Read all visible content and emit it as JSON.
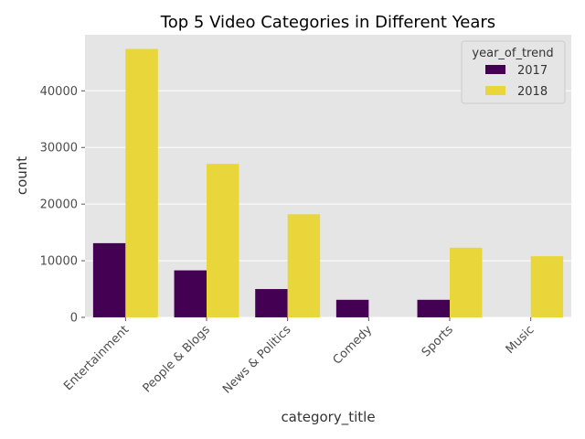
{
  "chart_data": {
    "type": "bar",
    "title": "Top 5 Video Categories in Different Years",
    "xlabel": "category_title",
    "ylabel": "count",
    "categories": [
      "Entertainment",
      "People & Blogs",
      "News & Politics",
      "Comedy",
      "Sports",
      "Music"
    ],
    "series": [
      {
        "name": "2017",
        "color": "#440154",
        "values": [
          13100,
          8300,
          5000,
          3100,
          3100,
          0
        ]
      },
      {
        "name": "2018",
        "color": "#e8d63b",
        "values": [
          47400,
          27100,
          18200,
          0,
          12300,
          10800
        ]
      }
    ],
    "ylim": [
      0,
      49900
    ],
    "yticks": [
      0,
      10000,
      20000,
      30000,
      40000
    ],
    "ytick_labels": [
      "0",
      "10000",
      "20000",
      "30000",
      "40000"
    ],
    "grid": true,
    "background": "#e5e5e5",
    "legend": {
      "title": "year_of_trend",
      "placement": "top-right"
    }
  }
}
